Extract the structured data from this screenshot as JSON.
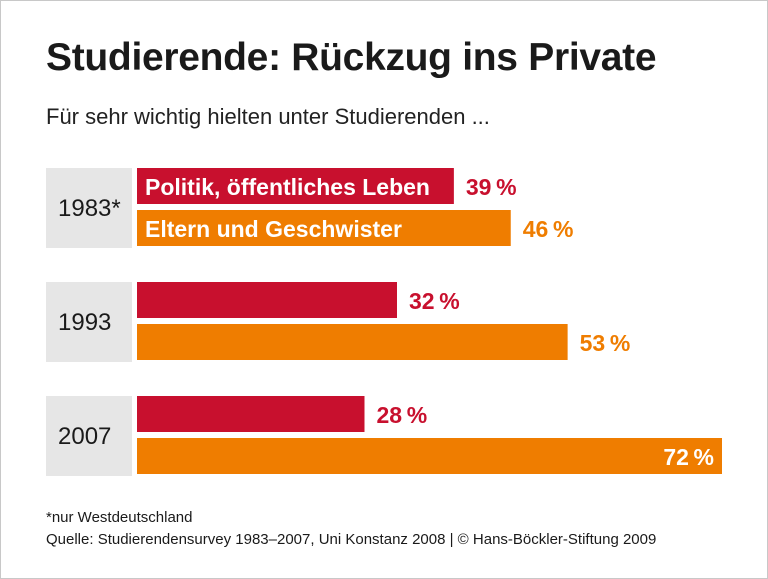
{
  "title": "Studierende: Rückzug ins Private",
  "subtitle": "Für sehr wichtig hielten unter Studierenden ...",
  "footnote": "*nur Westdeutschland",
  "source": "Quelle: Studierendensurvey 1983–2007, Uni Konstanz 2008 | © Hans-Böckler-Stiftung 2009",
  "chart_data": {
    "type": "bar",
    "orientation": "horizontal",
    "categories": [
      "1983*",
      "1993",
      "2007"
    ],
    "unit": "%",
    "xlim": [
      0,
      72
    ],
    "grid": false,
    "series": [
      {
        "name": "Politik, öffentliches Leben",
        "color": "#c8102e",
        "values": [
          39,
          32,
          28
        ]
      },
      {
        "name": "Eltern und Geschwister",
        "color": "#ef7d00",
        "values": [
          46,
          53,
          72
        ]
      }
    ]
  }
}
